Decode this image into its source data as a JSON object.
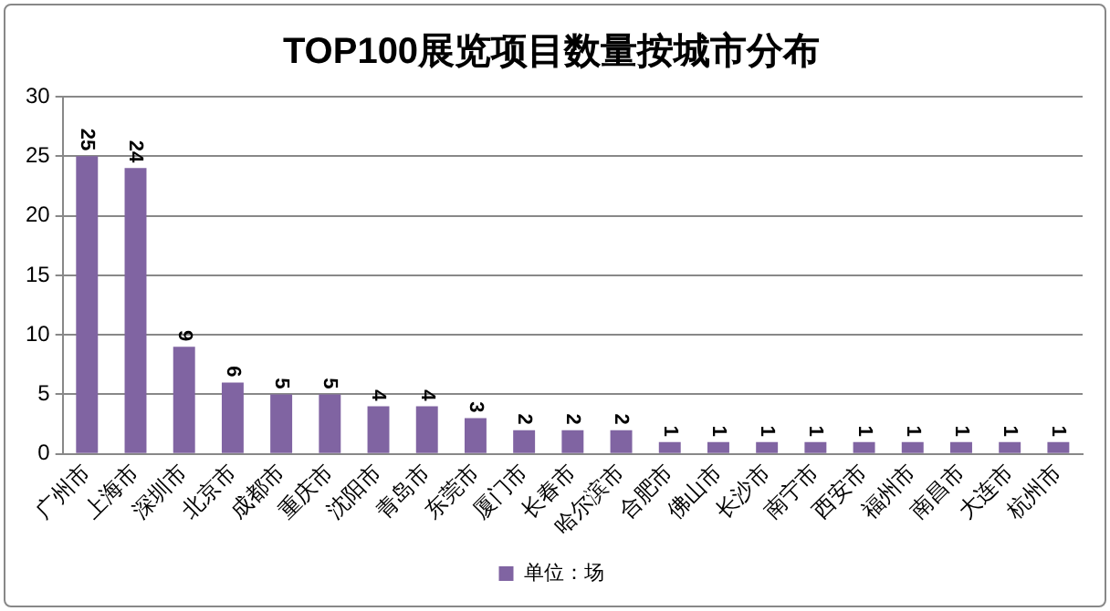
{
  "chart_data": {
    "type": "bar",
    "title": "TOP100展览项目数量按城市分布",
    "categories": [
      "广州市",
      "上海市",
      "深圳市",
      "北京市",
      "成都市",
      "重庆市",
      "沈阳市",
      "青岛市",
      "东莞市",
      "厦门市",
      "长春市",
      "哈尔滨市",
      "合肥市",
      "佛山市",
      "长沙市",
      "南宁市",
      "西安市",
      "福州市",
      "南昌市",
      "大连市",
      "杭州市"
    ],
    "series": [
      {
        "name": "单位：场",
        "color": "#8064a2",
        "values": [
          25,
          24,
          9,
          6,
          5,
          5,
          4,
          4,
          3,
          2,
          2,
          2,
          1,
          1,
          1,
          1,
          1,
          1,
          1,
          1,
          1
        ]
      }
    ],
    "ylim": [
      0,
      30
    ],
    "yticks": [
      0,
      5,
      10,
      15,
      20,
      25,
      30
    ],
    "grid": "y",
    "legend": "bottom",
    "data_labels": true
  }
}
